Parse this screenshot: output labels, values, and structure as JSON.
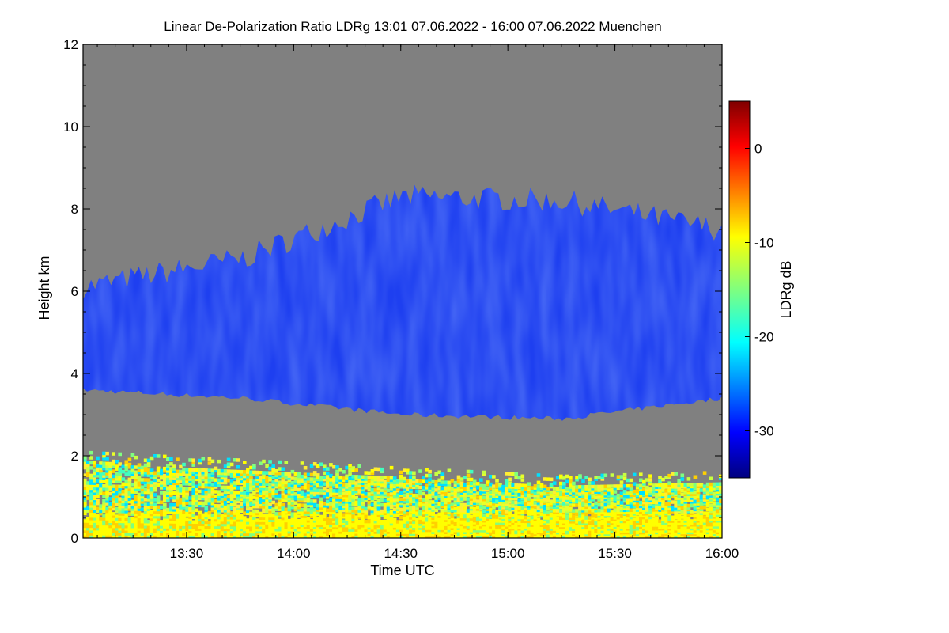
{
  "chart_data": {
    "type": "heatmap",
    "title": "Linear De-Polarization Ratio LDRg   13:01 07.06.2022 - 16:00 07.06.2022 Muenchen",
    "xlabel": "Time UTC",
    "ylabel": "Height km",
    "xlim": [
      "13:01",
      "16:00"
    ],
    "ylim": [
      0,
      12
    ],
    "x_ticks": [
      "13:30",
      "14:00",
      "14:30",
      "15:00",
      "15:30",
      "16:00"
    ],
    "y_ticks": [
      "0",
      "2",
      "4",
      "6",
      "8",
      "10",
      "12"
    ],
    "no_data_color": "#808080",
    "colorbar": {
      "label": "LDRg dB",
      "range": [
        -35,
        5
      ],
      "ticks": [
        "0",
        "-10",
        "-20",
        "-30"
      ],
      "colormap": "jet"
    },
    "layers": [
      {
        "name": "cloud",
        "ldr_db_typical": -30,
        "base_km": [
          3.6,
          3.4,
          3.0,
          2.9,
          3.4
        ],
        "top_km": [
          6.1,
          6.8,
          8.3,
          8.2,
          7.5
        ]
      },
      {
        "name": "boundary layer aerosol",
        "ldr_db_typical": -12,
        "base_km": 0.0,
        "top_km": [
          1.8,
          1.6,
          1.4,
          1.2,
          1.3
        ]
      }
    ]
  }
}
